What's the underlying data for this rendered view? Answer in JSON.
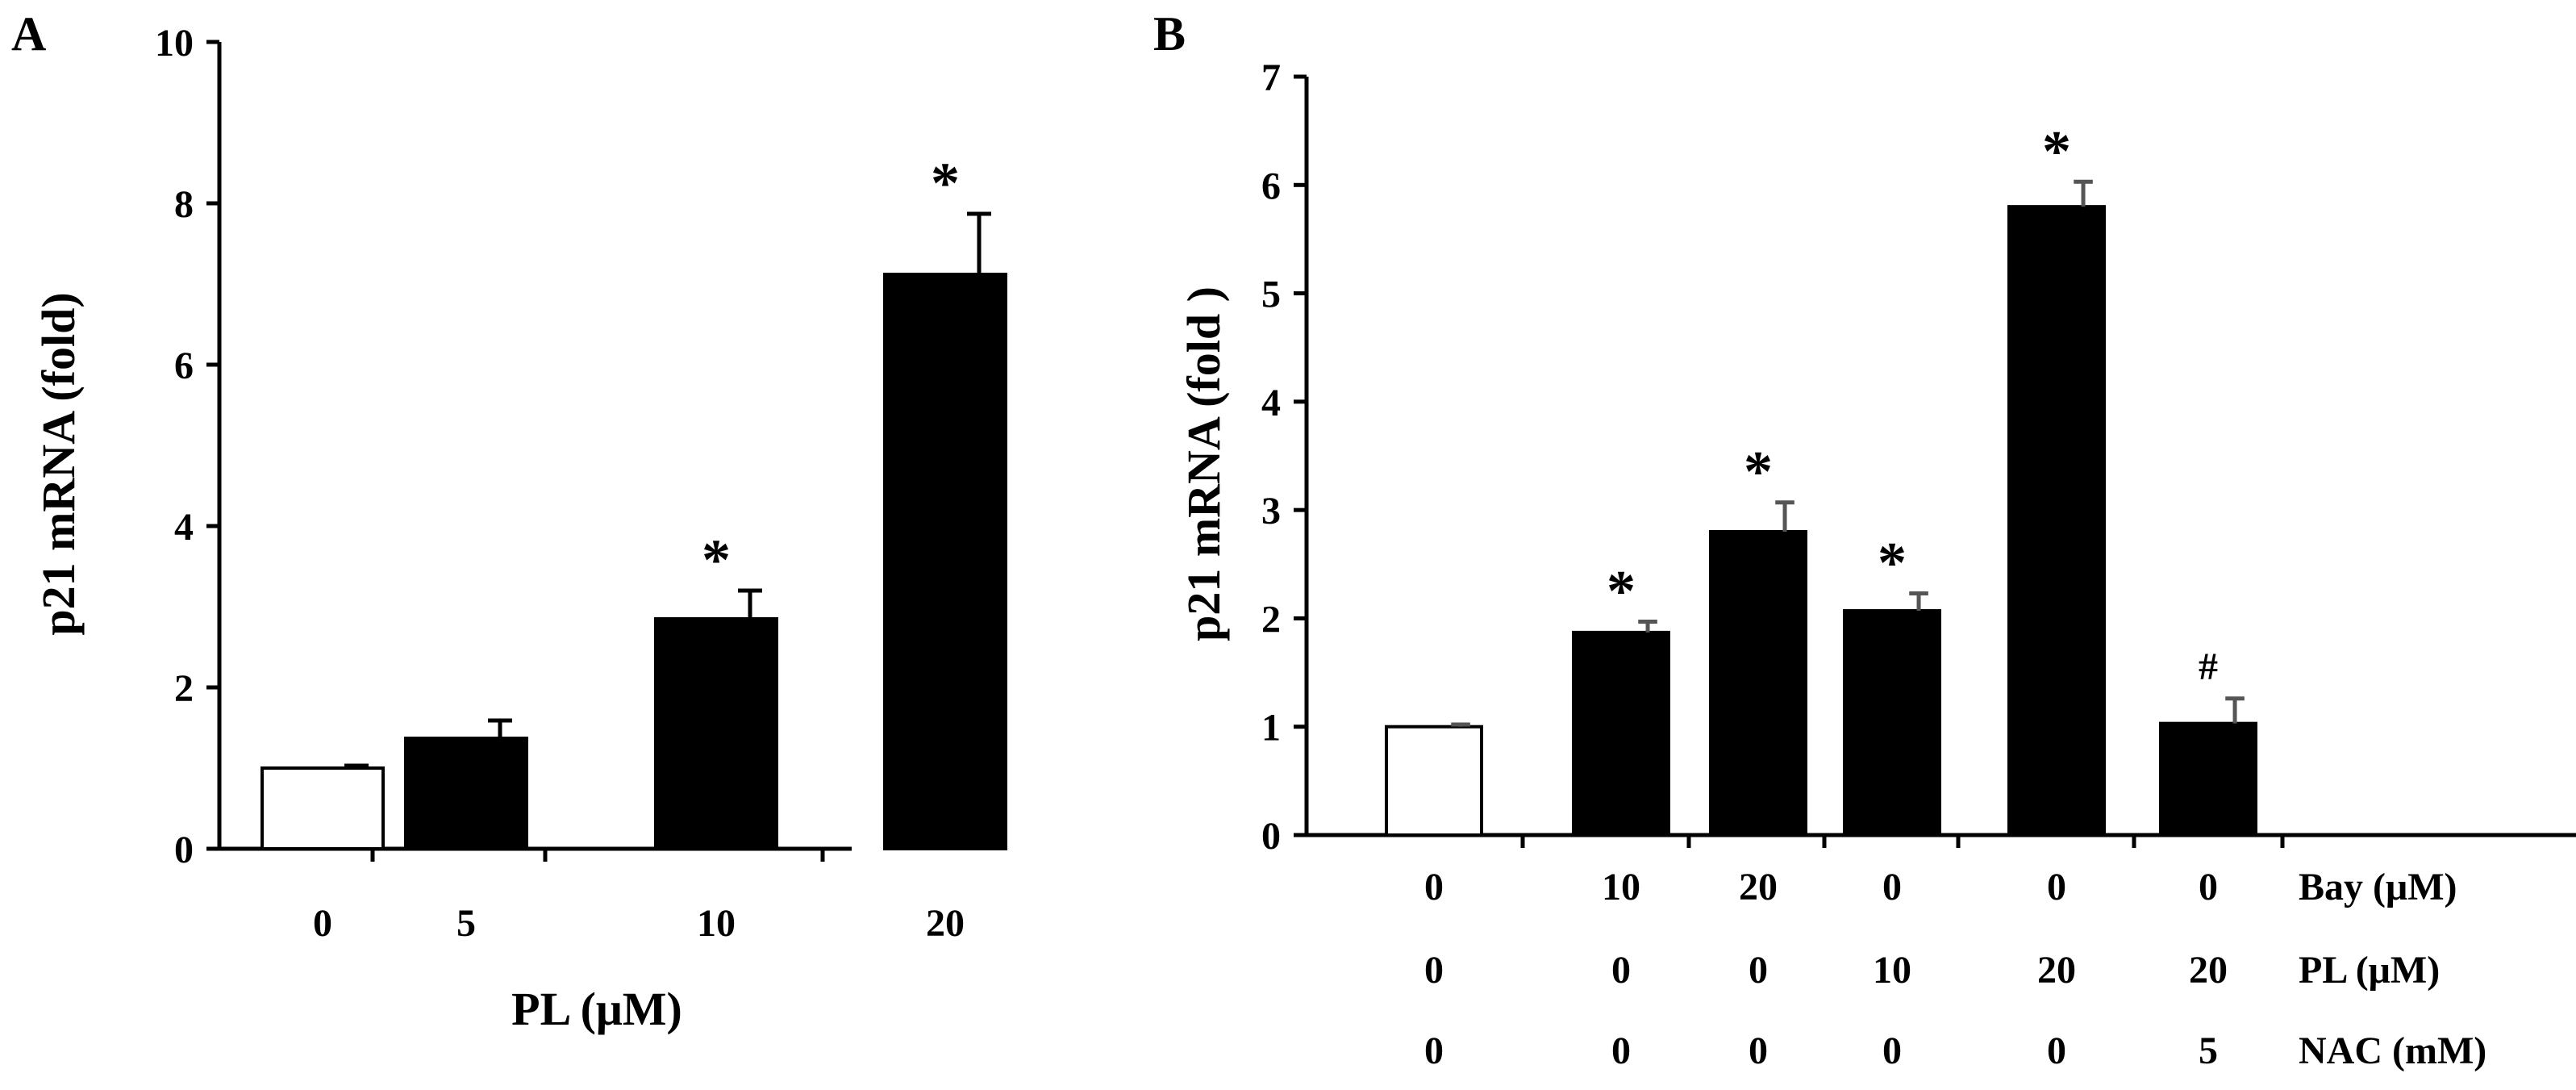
{
  "chart_data": [
    {
      "panel": "A",
      "type": "bar",
      "ylabel": "p21 mRNA (fold)",
      "xlabel": "PL (μM)",
      "ylim": [
        0,
        10
      ],
      "yticks": [
        "0",
        "2",
        "4",
        "6",
        "8",
        "10"
      ],
      "categories": [
        "0",
        "5",
        "10",
        "20"
      ],
      "values": [
        1.0,
        1.37,
        2.85,
        7.12
      ],
      "errors": [
        0.03,
        0.22,
        0.35,
        0.75
      ],
      "fills": [
        "white",
        "black",
        "black",
        "black"
      ],
      "annotations": [
        "",
        "",
        "*",
        "*"
      ]
    },
    {
      "panel": "B",
      "type": "bar",
      "ylabel": "p21 mRNA (fold )",
      "ylim": [
        0,
        7
      ],
      "yticks": [
        "0",
        "1",
        "2",
        "3",
        "4",
        "5",
        "6",
        "7"
      ],
      "conditions": [
        {
          "label": "Bay (μM)",
          "values": [
            "0",
            "10",
            "20",
            "0",
            "0",
            "0"
          ]
        },
        {
          "label": "PL (μM)",
          "values": [
            "0",
            "0",
            "0",
            "10",
            "20",
            "20"
          ]
        },
        {
          "label": "NAC (mM)",
          "values": [
            "0",
            "0",
            "0",
            "0",
            "0",
            "5"
          ]
        }
      ],
      "values": [
        1.0,
        1.87,
        2.8,
        2.07,
        5.8,
        1.03
      ],
      "errors": [
        0.02,
        0.1,
        0.27,
        0.16,
        0.23,
        0.23
      ],
      "fills": [
        "white",
        "black",
        "black",
        "black",
        "black",
        "black"
      ],
      "annotations": [
        "",
        "*",
        "*",
        "*",
        "*",
        "#"
      ]
    }
  ]
}
